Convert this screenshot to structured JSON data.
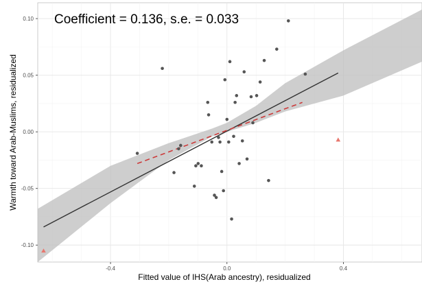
{
  "chart_data": {
    "type": "scatter",
    "title": "",
    "annotation": "Coefficient = 0.136, s.e. = 0.033",
    "xlabel": "Fitted value of IHS(Arab ancestry), residualized",
    "ylabel": "Warmth toward Arab-Muslims, residualized",
    "xlim": [
      -0.65,
      0.67
    ],
    "ylim": [
      -0.115,
      0.114
    ],
    "x_ticks": [
      {
        "value": -0.4,
        "label": "-0.4"
      },
      {
        "value": 0.0,
        "label": "0.0"
      },
      {
        "value": 0.4,
        "label": "0.4"
      }
    ],
    "y_ticks": [
      {
        "value": -0.1,
        "label": "-0.10"
      },
      {
        "value": -0.05,
        "label": "-0.05"
      },
      {
        "value": 0.0,
        "label": "0.00"
      },
      {
        "value": 0.05,
        "label": "0.05"
      },
      {
        "value": 0.1,
        "label": "0.10"
      }
    ],
    "grid": true,
    "series": [
      {
        "marker": "circle",
        "color": "#555555",
        "points": [
          [
            -0.308,
            -0.019
          ],
          [
            -0.222,
            0.056
          ],
          [
            -0.159,
            -0.012
          ],
          [
            -0.166,
            -0.015
          ],
          [
            -0.182,
            -0.036
          ],
          [
            -0.112,
            -0.048
          ],
          [
            -0.107,
            -0.03
          ],
          [
            -0.099,
            -0.028
          ],
          [
            -0.088,
            -0.03
          ],
          [
            -0.066,
            0.026
          ],
          [
            -0.063,
            0.015
          ],
          [
            -0.052,
            -0.009
          ],
          [
            -0.043,
            -0.056
          ],
          [
            -0.037,
            -0.058
          ],
          [
            -0.029,
            -0.005
          ],
          [
            -0.024,
            -0.009
          ],
          [
            -0.018,
            -0.035
          ],
          [
            -0.012,
            -0.052
          ],
          [
            -0.007,
            0.046
          ],
          [
            0.0,
            0.011
          ],
          [
            0.006,
            -0.009
          ],
          [
            0.01,
            0.062
          ],
          [
            0.016,
            -0.077
          ],
          [
            0.023,
            -0.004
          ],
          [
            0.028,
            0.026
          ],
          [
            0.033,
            0.032
          ],
          [
            0.042,
            -0.028
          ],
          [
            0.053,
            -0.008
          ],
          [
            0.059,
            0.053
          ],
          [
            0.069,
            -0.024
          ],
          [
            0.083,
            0.031
          ],
          [
            0.089,
            0.008
          ],
          [
            0.102,
            0.032
          ],
          [
            0.114,
            0.044
          ],
          [
            0.128,
            0.063
          ],
          [
            0.143,
            -0.043
          ],
          [
            0.171,
            0.073
          ],
          [
            0.211,
            0.098
          ],
          [
            0.269,
            0.051
          ]
        ]
      },
      {
        "marker": "triangle",
        "color": "#e8776e",
        "points": [
          [
            -0.63,
            -0.105
          ],
          [
            0.382,
            -0.007
          ]
        ]
      }
    ],
    "fit_line": {
      "color": "#333333",
      "from": [
        -0.63,
        -0.084
      ],
      "to": [
        0.382,
        0.052
      ]
    },
    "confidence_band": {
      "color": "#bdbdbd",
      "upper": [
        [
          -0.65,
          -0.068
        ],
        [
          -0.4,
          -0.03
        ],
        [
          -0.2,
          -0.01
        ],
        [
          -0.05,
          0.003
        ],
        [
          0.0,
          0.008
        ],
        [
          0.1,
          0.023
        ],
        [
          0.2,
          0.043
        ],
        [
          0.4,
          0.072
        ],
        [
          0.67,
          0.108
        ]
      ],
      "lower": [
        [
          -0.65,
          -0.115
        ],
        [
          -0.4,
          -0.063
        ],
        [
          -0.2,
          -0.025
        ],
        [
          -0.05,
          -0.004
        ],
        [
          0.0,
          0.0
        ],
        [
          0.1,
          0.008
        ],
        [
          0.2,
          0.018
        ],
        [
          0.4,
          0.032
        ],
        [
          0.67,
          0.062
        ]
      ]
    },
    "dashed_line": {
      "color": "#cc3a3a",
      "from": [
        -0.308,
        -0.028
      ],
      "to": [
        0.259,
        0.026
      ]
    }
  }
}
